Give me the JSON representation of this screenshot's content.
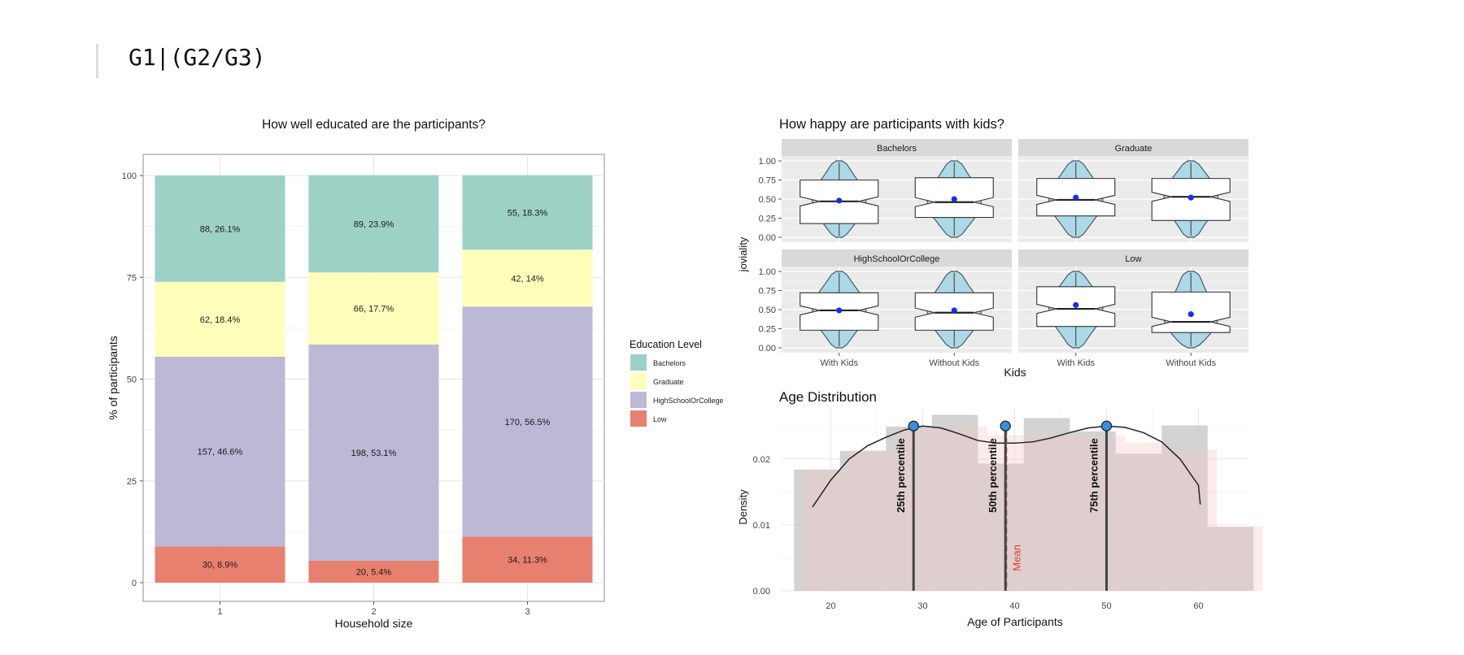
{
  "heading": "G1|(G2/G3)",
  "chart_data": [
    {
      "type": "bar",
      "stacked": true,
      "title": "How well educated are the participants?",
      "xlabel": "Household size",
      "ylabel": "% of participants",
      "ylim": [
        0,
        100
      ],
      "yticks": [
        "0",
        "25",
        "50",
        "75",
        "100"
      ],
      "categories": [
        "1",
        "2",
        "3"
      ],
      "legend": {
        "title": "Education Level",
        "placement": "right"
      },
      "series": [
        {
          "name": "Low",
          "color": "#e8806f",
          "counts": [
            30,
            20,
            34
          ],
          "values": [
            8.9,
            5.4,
            11.3
          ],
          "labels": [
            "30, 8.9%",
            "20, 5.4%",
            "34, 11.3%"
          ]
        },
        {
          "name": "HighSchoolOrCollege",
          "color": "#bcb8d6",
          "counts": [
            157,
            198,
            170
          ],
          "values": [
            46.6,
            53.1,
            56.5
          ],
          "labels": [
            "157, 46.6%",
            "198, 53.1%",
            "170, 56.5%"
          ]
        },
        {
          "name": "Graduate",
          "color": "#ffffbb",
          "counts": [
            62,
            66,
            42
          ],
          "values": [
            18.4,
            17.7,
            14.0
          ],
          "labels": [
            "62, 18.4%",
            "66, 17.7%",
            "42, 14%"
          ]
        },
        {
          "name": "Bachelors",
          "color": "#9dd1c6",
          "counts": [
            88,
            89,
            55
          ],
          "values": [
            26.1,
            23.9,
            18.3
          ],
          "labels": [
            "88, 26.1%",
            "89, 23.9%",
            "55, 18.3%"
          ]
        }
      ],
      "legend_order": [
        "Bachelors",
        "Graduate",
        "HighSchoolOrCollege",
        "Low"
      ]
    },
    {
      "type": "violin",
      "title": "How happy are participants with kids?",
      "xlabel": "Kids",
      "ylabel": "joviality",
      "ylim": [
        0,
        1
      ],
      "yticks": [
        "0.00",
        "0.25",
        "0.50",
        "0.75",
        "1.00"
      ],
      "categories": [
        "With Kids",
        "Without Kids"
      ],
      "fill": "#add8e6",
      "mean_color": "#1a2ee6",
      "panels": [
        {
          "facet": "Bachelors",
          "groups": [
            {
              "q1": 0.18,
              "median": 0.47,
              "q3": 0.75,
              "mean": 0.48
            },
            {
              "q1": 0.26,
              "median": 0.46,
              "q3": 0.78,
              "mean": 0.5
            }
          ]
        },
        {
          "facet": "Graduate",
          "groups": [
            {
              "q1": 0.28,
              "median": 0.49,
              "q3": 0.77,
              "mean": 0.52
            },
            {
              "q1": 0.22,
              "median": 0.53,
              "q3": 0.77,
              "mean": 0.52
            }
          ]
        },
        {
          "facet": "HighSchoolOrCollege",
          "groups": [
            {
              "q1": 0.23,
              "median": 0.49,
              "q3": 0.72,
              "mean": 0.49
            },
            {
              "q1": 0.23,
              "median": 0.46,
              "q3": 0.72,
              "mean": 0.49
            }
          ]
        },
        {
          "facet": "Low",
          "groups": [
            {
              "q1": 0.28,
              "median": 0.51,
              "q3": 0.8,
              "mean": 0.56
            },
            {
              "q1": 0.2,
              "median": 0.34,
              "q3": 0.73,
              "mean": 0.44
            }
          ]
        }
      ]
    },
    {
      "type": "histogram",
      "title": "Age Distribution",
      "xlabel": "Age of Participants",
      "ylabel": "Density",
      "xlim": [
        15,
        65
      ],
      "ylim": [
        0,
        0.027
      ],
      "xticks": [
        "20",
        "30",
        "40",
        "50",
        "60"
      ],
      "yticks": [
        "0.00",
        "0.01",
        "0.02"
      ],
      "bins": [
        {
          "start": 17,
          "end": 22,
          "density": 0.0184
        },
        {
          "start": 22,
          "end": 27,
          "density": 0.0214
        },
        {
          "start": 27,
          "end": 32,
          "density": 0.0249
        },
        {
          "start": 32,
          "end": 37,
          "density": 0.0249
        },
        {
          "start": 37,
          "end": 42,
          "density": 0.0236
        },
        {
          "start": 42,
          "end": 47,
          "density": 0.0236
        },
        {
          "start": 47,
          "end": 52,
          "density": 0.0236
        },
        {
          "start": 52,
          "end": 57,
          "density": 0.0225
        },
        {
          "start": 57,
          "end": 62,
          "density": 0.0214
        },
        {
          "start": 62,
          "end": 67,
          "density": 0.0098
        }
      ],
      "overlay_bins": [
        {
          "start": 16,
          "end": 21,
          "density": 0.0184
        },
        {
          "start": 21,
          "end": 26,
          "density": 0.0212
        },
        {
          "start": 26,
          "end": 31,
          "density": 0.0249
        },
        {
          "start": 31,
          "end": 36,
          "density": 0.0267
        },
        {
          "start": 36,
          "end": 41,
          "density": 0.0193
        },
        {
          "start": 41,
          "end": 46,
          "density": 0.0262
        },
        {
          "start": 46,
          "end": 51,
          "density": 0.0242
        },
        {
          "start": 51,
          "end": 56,
          "density": 0.0208
        },
        {
          "start": 56,
          "end": 61,
          "density": 0.0251
        },
        {
          "start": 61,
          "end": 66,
          "density": 0.0097
        }
      ],
      "density_curve": [
        [
          18,
          0.0127
        ],
        [
          20,
          0.0168
        ],
        [
          22,
          0.02
        ],
        [
          24,
          0.022
        ],
        [
          26,
          0.0233
        ],
        [
          28,
          0.0244
        ],
        [
          30,
          0.025
        ],
        [
          32,
          0.0247
        ],
        [
          34,
          0.0238
        ],
        [
          36,
          0.0228
        ],
        [
          38,
          0.0224
        ],
        [
          40,
          0.0224
        ],
        [
          42,
          0.0226
        ],
        [
          44,
          0.0232
        ],
        [
          46,
          0.024
        ],
        [
          48,
          0.0247
        ],
        [
          50,
          0.025
        ],
        [
          52,
          0.0248
        ],
        [
          54,
          0.024
        ],
        [
          56,
          0.0226
        ],
        [
          58,
          0.02
        ],
        [
          60,
          0.016
        ],
        [
          60.2,
          0.0131
        ]
      ],
      "percentiles": [
        {
          "label": "25th percentile",
          "x": 29,
          "y": 0.025
        },
        {
          "label": "50th percentile",
          "x": 39,
          "y": 0.025
        },
        {
          "label": "75th percentile",
          "x": 50,
          "y": 0.025
        }
      ],
      "mean": {
        "label": "Mean",
        "x": 39.1,
        "color": "#e53935"
      }
    }
  ]
}
